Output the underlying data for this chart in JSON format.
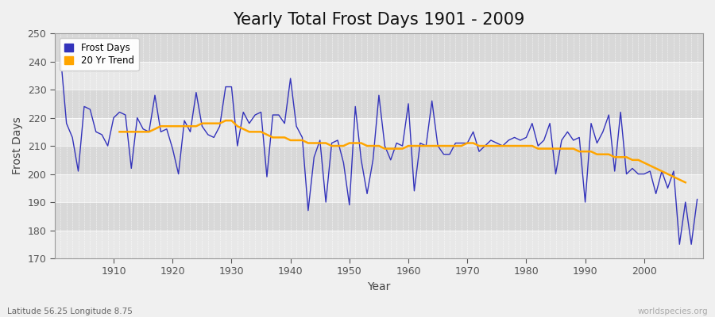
{
  "title": "Yearly Total Frost Days 1901 - 2009",
  "xlabel": "Year",
  "ylabel": "Frost Days",
  "subtitle": "Latitude 56.25 Longitude 8.75",
  "watermark": "worldspecies.org",
  "years": [
    1901,
    1902,
    1903,
    1904,
    1905,
    1906,
    1907,
    1908,
    1909,
    1910,
    1911,
    1912,
    1913,
    1914,
    1915,
    1916,
    1917,
    1918,
    1919,
    1920,
    1921,
    1922,
    1923,
    1924,
    1925,
    1926,
    1927,
    1928,
    1929,
    1930,
    1931,
    1932,
    1933,
    1934,
    1935,
    1936,
    1937,
    1938,
    1939,
    1940,
    1941,
    1942,
    1943,
    1944,
    1945,
    1946,
    1947,
    1948,
    1949,
    1950,
    1951,
    1952,
    1953,
    1954,
    1955,
    1956,
    1957,
    1958,
    1959,
    1960,
    1961,
    1962,
    1963,
    1964,
    1965,
    1966,
    1967,
    1968,
    1969,
    1970,
    1971,
    1972,
    1973,
    1974,
    1975,
    1976,
    1977,
    1978,
    1979,
    1980,
    1981,
    1982,
    1983,
    1984,
    1985,
    1986,
    1987,
    1988,
    1989,
    1990,
    1991,
    1992,
    1993,
    1994,
    1995,
    1996,
    1997,
    1998,
    1999,
    2000,
    2001,
    2002,
    2003,
    2004,
    2005,
    2006,
    2007,
    2008,
    2009
  ],
  "frost_days": [
    242,
    218,
    213,
    201,
    224,
    223,
    215,
    214,
    210,
    220,
    222,
    221,
    202,
    220,
    216,
    215,
    228,
    215,
    216,
    209,
    200,
    219,
    215,
    229,
    217,
    214,
    213,
    217,
    231,
    231,
    210,
    222,
    218,
    221,
    222,
    199,
    221,
    221,
    218,
    234,
    217,
    213,
    187,
    206,
    212,
    190,
    211,
    212,
    204,
    189,
    224,
    205,
    193,
    205,
    228,
    210,
    205,
    211,
    210,
    225,
    194,
    211,
    210,
    226,
    210,
    207,
    207,
    211,
    211,
    211,
    215,
    208,
    210,
    212,
    211,
    210,
    212,
    213,
    212,
    213,
    218,
    210,
    212,
    218,
    200,
    212,
    215,
    212,
    213,
    190,
    218,
    211,
    215,
    221,
    201,
    222,
    200,
    202,
    200,
    200,
    201,
    193,
    201,
    195,
    201,
    175,
    190,
    175,
    191
  ],
  "trend_values": [
    null,
    null,
    null,
    null,
    null,
    null,
    null,
    null,
    null,
    null,
    215,
    215,
    215,
    215,
    215,
    215,
    216,
    217,
    217,
    217,
    217,
    217,
    217,
    217,
    218,
    218,
    218,
    218,
    219,
    219,
    217,
    216,
    215,
    215,
    215,
    214,
    213,
    213,
    213,
    212,
    212,
    212,
    211,
    211,
    211,
    211,
    210,
    210,
    210,
    211,
    211,
    211,
    210,
    210,
    210,
    209,
    209,
    209,
    209,
    210,
    210,
    210,
    210,
    210,
    210,
    210,
    210,
    210,
    210,
    211,
    211,
    210,
    210,
    210,
    210,
    210,
    210,
    210,
    210,
    210,
    210,
    209,
    209,
    209,
    209,
    209,
    209,
    209,
    208,
    208,
    208,
    207,
    207,
    207,
    206,
    206,
    206,
    205,
    205,
    204,
    203,
    202,
    201,
    200,
    199,
    198,
    197,
    null,
    null
  ],
  "line_color": "#3333bb",
  "trend_color": "#FFA500",
  "bg_color": "#f0f0f0",
  "plot_bg_color": "#ebebeb",
  "band_color_light": "#e8e8e8",
  "band_color_dark": "#d8d8d8",
  "ylim": [
    170,
    250
  ],
  "xlim": [
    1900,
    2010
  ],
  "yticks": [
    170,
    180,
    190,
    200,
    210,
    220,
    230,
    240,
    250
  ],
  "xticks": [
    1910,
    1920,
    1930,
    1940,
    1950,
    1960,
    1970,
    1980,
    1990,
    2000
  ],
  "title_fontsize": 15,
  "label_fontsize": 10,
  "tick_fontsize": 9,
  "legend_labels": [
    "Frost Days",
    "20 Yr Trend"
  ]
}
